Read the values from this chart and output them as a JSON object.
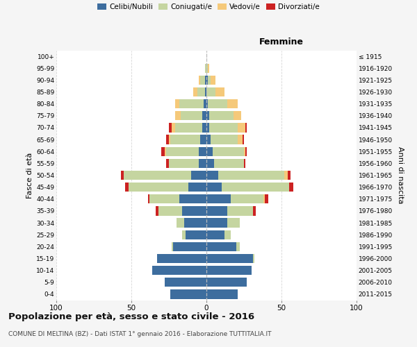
{
  "age_groups": [
    "0-4",
    "5-9",
    "10-14",
    "15-19",
    "20-24",
    "25-29",
    "30-34",
    "35-39",
    "40-44",
    "45-49",
    "50-54",
    "55-59",
    "60-64",
    "65-69",
    "70-74",
    "75-79",
    "80-84",
    "85-89",
    "90-94",
    "95-99",
    "100+"
  ],
  "birth_years": [
    "2011-2015",
    "2006-2010",
    "2001-2005",
    "1996-2000",
    "1991-1995",
    "1986-1990",
    "1981-1985",
    "1976-1980",
    "1971-1975",
    "1966-1970",
    "1961-1965",
    "1956-1960",
    "1951-1955",
    "1946-1950",
    "1941-1945",
    "1936-1940",
    "1931-1935",
    "1926-1930",
    "1921-1925",
    "1916-1920",
    "≤ 1915"
  ],
  "male": {
    "celibi": [
      24,
      28,
      36,
      33,
      22,
      14,
      15,
      16,
      18,
      12,
      10,
      5,
      5,
      4,
      3,
      3,
      2,
      1,
      1,
      0,
      0
    ],
    "coniugati": [
      0,
      0,
      0,
      0,
      1,
      2,
      5,
      16,
      20,
      40,
      45,
      20,
      22,
      20,
      18,
      14,
      16,
      5,
      3,
      1,
      0
    ],
    "vedovi": [
      0,
      0,
      0,
      0,
      0,
      0,
      0,
      0,
      0,
      0,
      0,
      0,
      1,
      1,
      2,
      4,
      3,
      3,
      1,
      0,
      0
    ],
    "divorziati": [
      0,
      0,
      0,
      0,
      0,
      0,
      0,
      2,
      1,
      2,
      2,
      2,
      2,
      2,
      2,
      0,
      0,
      0,
      0,
      0,
      0
    ]
  },
  "female": {
    "nubili": [
      21,
      27,
      30,
      31,
      20,
      12,
      14,
      14,
      16,
      10,
      8,
      5,
      4,
      3,
      2,
      2,
      1,
      0,
      1,
      0,
      0
    ],
    "coniugate": [
      0,
      0,
      0,
      1,
      2,
      4,
      8,
      17,
      22,
      45,
      44,
      20,
      21,
      18,
      19,
      16,
      13,
      6,
      2,
      1,
      0
    ],
    "vedove": [
      0,
      0,
      0,
      0,
      0,
      0,
      0,
      0,
      1,
      0,
      2,
      0,
      1,
      3,
      5,
      5,
      7,
      6,
      3,
      1,
      0
    ],
    "divorziate": [
      0,
      0,
      0,
      0,
      0,
      0,
      0,
      2,
      2,
      3,
      2,
      1,
      1,
      1,
      1,
      0,
      0,
      0,
      0,
      0,
      0
    ]
  },
  "colors": {
    "celibi": "#3d6d9e",
    "coniugati": "#c5d5a0",
    "vedovi": "#f5c97a",
    "divorziati": "#cc2222"
  },
  "xlim": 100,
  "title": "Popolazione per età, sesso e stato civile - 2016",
  "subtitle": "COMUNE DI MELTINA (BZ) - Dati ISTAT 1° gennaio 2016 - Elaborazione TUTTITALIA.IT",
  "ylabel_left": "Fasce di età",
  "ylabel_right": "Anni di nascita",
  "xlabel_right": "Femmine",
  "bg_color": "#f5f5f5",
  "plot_bg": "#ffffff"
}
